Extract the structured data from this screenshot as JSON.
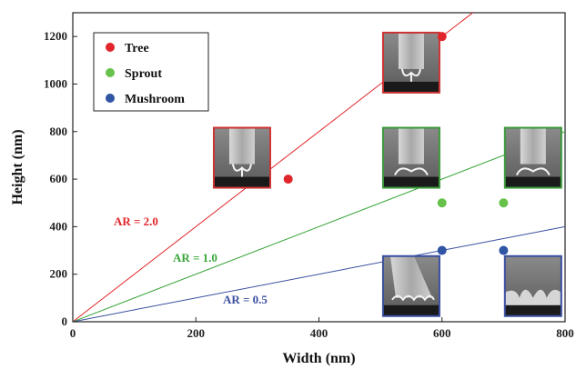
{
  "chart_data": {
    "type": "scatter",
    "xlabel": "Width (nm)",
    "ylabel": "Height (nm)",
    "xlim": [
      0,
      800
    ],
    "ylim": [
      0,
      1300
    ],
    "xticks": [
      "0",
      "200",
      "400",
      "600",
      "800"
    ],
    "yticks": [
      "0",
      "200",
      "400",
      "600",
      "800",
      "1000",
      "1200"
    ],
    "legend_position": "top-left",
    "series": [
      {
        "name": "Tree",
        "color": "#e0262a",
        "x": [
          600,
          350
        ],
        "y": [
          1200,
          600
        ]
      },
      {
        "name": "Sprout",
        "color": "#66c24a",
        "x": [
          600,
          700
        ],
        "y": [
          500,
          500
        ]
      },
      {
        "name": "Mushroom",
        "color": "#2f55a4",
        "x": [
          600,
          700
        ],
        "y": [
          300,
          300
        ]
      }
    ],
    "reference_lines": [
      {
        "label": "AR = 2.0",
        "slope": 2.0,
        "color": "#e0262a"
      },
      {
        "label": "AR = 1.0",
        "slope": 1.0,
        "color": "#3aa63a"
      },
      {
        "label": "AR = 0.5",
        "slope": 0.5,
        "color": "#3a4fa0"
      }
    ],
    "inset_images": [
      {
        "frame_color": "#cc3333",
        "structure": "tree",
        "x": 275,
        "y": 690
      },
      {
        "frame_color": "#cc3333",
        "structure": "tree",
        "x": 550,
        "y": 1090
      },
      {
        "frame_color": "#3a9a3a",
        "structure": "sprout",
        "x": 550,
        "y": 690
      },
      {
        "frame_color": "#3a9a3a",
        "structure": "sprout",
        "x": 748,
        "y": 690
      },
      {
        "frame_color": "#3a4fa0",
        "structure": "mushroom-tilted",
        "x": 550,
        "y": 150
      },
      {
        "frame_color": "#3a4fa0",
        "structure": "mushroom",
        "x": 748,
        "y": 150
      }
    ]
  }
}
